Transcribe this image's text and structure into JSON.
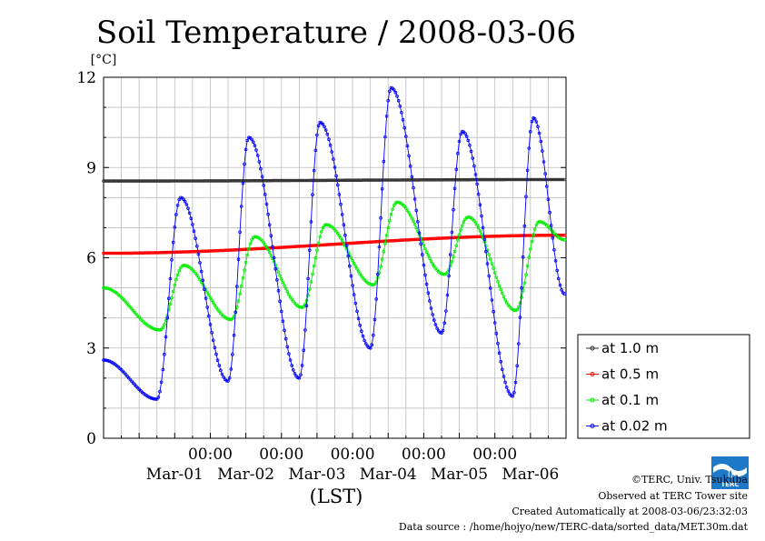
{
  "chart_data": {
    "type": "line",
    "title": "Soil Temperature / 2008-03-06",
    "yunit": "[°C]",
    "xlabel": "(LST)",
    "ylim": [
      0,
      12
    ],
    "yticks": [
      "0",
      "3",
      "6",
      "9",
      "12"
    ],
    "grid": true,
    "time_ticks": [
      "00:00",
      "00:00",
      "00:00",
      "00:00",
      "00:00"
    ],
    "date_labels": [
      "Mar-01",
      "Mar-02",
      "Mar-03",
      "Mar-04",
      "Mar-05",
      "Mar-06"
    ],
    "legend_position": "right",
    "series": [
      {
        "name": "at 1.0 m",
        "color": "#333333",
        "x": [
          "2008-02-29 12:00",
          "2008-03-06 23:30"
        ],
        "y": [
          8.55,
          8.6
        ]
      },
      {
        "name": "at 0.5 m",
        "color": "#ff0000",
        "x": [
          "2008-02-29 12:00",
          "2008-03-06 23:30"
        ],
        "y": [
          6.15,
          6.75
        ]
      },
      {
        "name": "at 0.1 m",
        "color": "#00ee00",
        "x": [
          "2008-02-29 12:00",
          "2008-03-01 07:00",
          "2008-03-01 15:00",
          "2008-03-02 07:00",
          "2008-03-02 15:00",
          "2008-03-03 07:00",
          "2008-03-03 15:00",
          "2008-03-04 07:00",
          "2008-03-04 15:00",
          "2008-03-05 07:00",
          "2008-03-05 15:00",
          "2008-03-06 07:00",
          "2008-03-06 15:00",
          "2008-03-06 23:30"
        ],
        "y": [
          5.0,
          3.6,
          5.75,
          3.95,
          6.7,
          4.35,
          7.1,
          5.1,
          7.85,
          5.45,
          7.35,
          4.25,
          7.2,
          6.6
        ]
      },
      {
        "name": "at 0.02 m",
        "color": "#0000ff",
        "x": [
          "2008-02-29 12:00",
          "2008-03-01 06:00",
          "2008-03-01 14:00",
          "2008-03-02 06:00",
          "2008-03-02 13:00",
          "2008-03-03 06:00",
          "2008-03-03 13:00",
          "2008-03-04 06:00",
          "2008-03-04 13:00",
          "2008-03-05 06:00",
          "2008-03-05 13:00",
          "2008-03-06 06:00",
          "2008-03-06 13:00",
          "2008-03-06 23:30"
        ],
        "y": [
          2.6,
          1.3,
          8.0,
          1.9,
          10.0,
          2.0,
          10.5,
          3.0,
          11.65,
          3.5,
          10.2,
          1.4,
          10.65,
          4.8
        ]
      }
    ]
  },
  "credits": {
    "copyright": "©TERC, Univ. Tsukuba",
    "observed": "Observed at TERC Tower site",
    "created": "Created Automatically at 2008-03-06/23:32:03",
    "source": "Data source : /home/hojyo/new/TERC-data/sorted_data/MET.30m.dat",
    "logo_text": "TERC"
  }
}
